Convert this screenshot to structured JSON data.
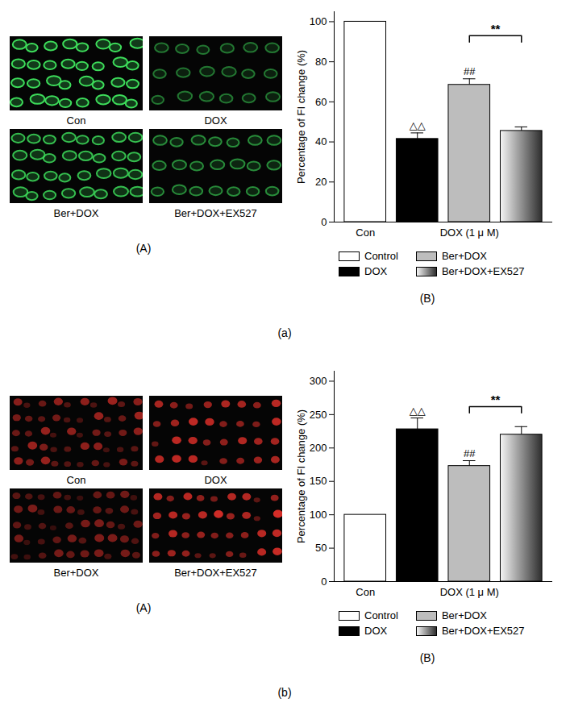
{
  "chart_data": [
    {
      "type": "bar",
      "y_label": "Percentage of FI change (%)",
      "categories": [
        "Con",
        null,
        "DOX (1 μ M)",
        null
      ],
      "series": [
        {
          "name": "Control",
          "color": "#ffffff",
          "values": [
            100,
            null,
            null,
            null
          ],
          "errors": [
            null,
            null,
            null,
            null
          ]
        },
        {
          "name": "DOX",
          "color": "#000000",
          "values": [
            null,
            41.5,
            null,
            null
          ],
          "errors": [
            null,
            3,
            null,
            null
          ],
          "annotation": "△△"
        },
        {
          "name": "Ber+DOX",
          "color": "#bdbdbd",
          "values": [
            null,
            null,
            68.5,
            null
          ],
          "errors": [
            null,
            null,
            3,
            null
          ],
          "annotation": "##"
        },
        {
          "name": "Ber+DOX+EX527",
          "gradient": [
            "#f5f5f5",
            "#2e2e2e"
          ],
          "values": [
            null,
            null,
            null,
            45.5
          ],
          "errors": [
            null,
            null,
            null,
            2
          ]
        }
      ],
      "comparisons": [
        {
          "between": [
            "Ber+DOX",
            "Ber+DOX+EX527"
          ],
          "y": 93,
          "text": "**"
        }
      ],
      "ylim": [
        0,
        105
      ],
      "yticks": [
        0,
        20,
        40,
        60,
        80,
        100
      ]
    },
    {
      "type": "bar",
      "y_label": "Percentage of FI change (%)",
      "categories": [
        "Con",
        null,
        "DOX (1 μ M)",
        null
      ],
      "series": [
        {
          "name": "Control",
          "color": "#ffffff",
          "values": [
            100,
            null,
            null,
            null
          ],
          "errors": [
            null,
            null,
            null,
            null
          ]
        },
        {
          "name": "DOX",
          "color": "#000000",
          "values": [
            null,
            228,
            null,
            null
          ],
          "errors": [
            null,
            17,
            null,
            null
          ],
          "annotation": "△△"
        },
        {
          "name": "Ber+DOX",
          "color": "#bdbdbd",
          "values": [
            null,
            null,
            173,
            null
          ],
          "errors": [
            null,
            null,
            8,
            null
          ],
          "annotation": "##"
        },
        {
          "name": "Ber+DOX+EX527",
          "gradient": [
            "#f5f5f5",
            "#2e2e2e"
          ],
          "values": [
            null,
            null,
            null,
            220
          ],
          "errors": [
            null,
            null,
            null,
            12
          ]
        }
      ],
      "comparisons": [
        {
          "between": [
            "Ber+DOX",
            "Ber+DOX+EX527"
          ],
          "y": 262,
          "text": "**"
        }
      ],
      "ylim": [
        0,
        315
      ],
      "yticks": [
        0,
        50,
        100,
        150,
        200,
        250,
        300
      ]
    }
  ],
  "panels": [
    {
      "label": "(a)",
      "image_label": "(A)",
      "chart_label": "(B)",
      "image_color": "#3ddc5a",
      "captions": [
        "Con",
        "DOX",
        "Ber+DOX",
        "Ber+DOX+EX527"
      ]
    },
    {
      "label": "(b)",
      "image_label": "(A)",
      "chart_label": "(B)",
      "image_color": "#e0302a",
      "captions": [
        "Con",
        "DOX",
        "Ber+DOX",
        "Ber+DOX+EX527"
      ]
    }
  ]
}
